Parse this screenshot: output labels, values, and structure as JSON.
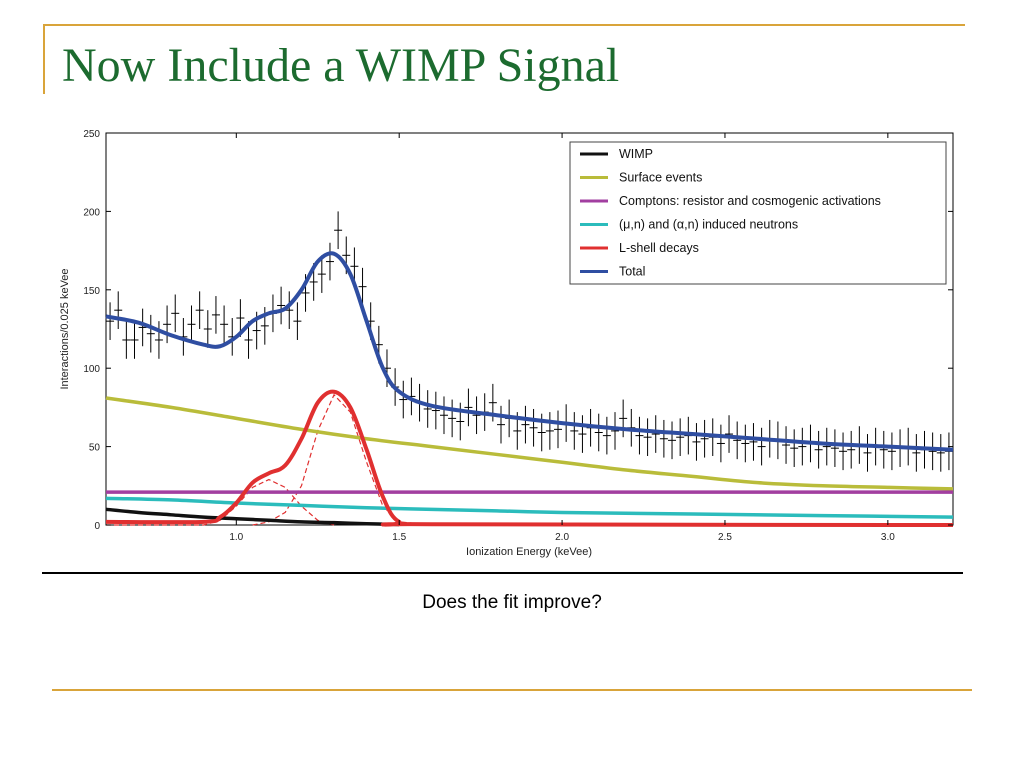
{
  "slide": {
    "title": "Now Include a WIMP Signal",
    "caption": "Does the fit improve?"
  },
  "colors": {
    "title": "#1c6b2f",
    "accent_lines": "#d9a43a"
  },
  "chart_data": {
    "type": "line",
    "title": "",
    "xlabel": "Ionization Energy (keVee)",
    "ylabel": "Interactions/0.025 keVee",
    "xlim": [
      0.6,
      3.2
    ],
    "ylim": [
      0,
      250
    ],
    "xticks": [
      1.0,
      1.5,
      2.0,
      2.5,
      3.0
    ],
    "xtick_labels": [
      "1.0",
      "1.5",
      "2.0",
      "2.5",
      "3.0"
    ],
    "yticks": [
      0,
      50,
      100,
      150,
      200,
      250
    ],
    "ytick_labels": [
      "0",
      "50",
      "100",
      "150",
      "200",
      "250"
    ],
    "grid": false,
    "legend_position": "top-right",
    "series": [
      {
        "name": "WIMP",
        "color": "#111111",
        "x": [
          0.6,
          0.7,
          0.8,
          0.9,
          1.0,
          1.1,
          1.2,
          1.3,
          1.4,
          1.5
        ],
        "y": [
          10,
          8,
          6.5,
          5,
          4,
          3,
          2,
          1.5,
          0.8,
          0.3
        ]
      },
      {
        "name": "Surface events",
        "color": "#b9bc3a",
        "x": [
          0.6,
          0.8,
          1.0,
          1.2,
          1.4,
          1.6,
          1.8,
          2.0,
          2.2,
          2.4,
          2.6,
          2.8,
          3.0,
          3.2
        ],
        "y": [
          81,
          75,
          68,
          61,
          55,
          50,
          45,
          40,
          35,
          31,
          27,
          25,
          24,
          23
        ]
      },
      {
        "name": "Comptons: resistor and cosmogenic activations",
        "color": "#a23fa0",
        "x": [
          0.6,
          3.2
        ],
        "y": [
          21,
          21
        ]
      },
      {
        "name": "(μ,n) and (α,n) induced neutrons",
        "color": "#2bbcbc",
        "x": [
          0.6,
          0.8,
          1.0,
          1.2,
          1.4,
          1.6,
          1.8,
          2.0,
          2.4,
          2.8,
          3.2
        ],
        "y": [
          17,
          16,
          14,
          12.5,
          11,
          10,
          9,
          8,
          7,
          6,
          5
        ]
      },
      {
        "name": "L-shell decays",
        "color": "#e03030",
        "x": [
          0.6,
          0.9,
          0.95,
          1.0,
          1.05,
          1.1,
          1.15,
          1.2,
          1.25,
          1.3,
          1.35,
          1.4,
          1.45,
          1.5,
          1.6,
          3.2
        ],
        "y": [
          2,
          2,
          5,
          14,
          27,
          33,
          38,
          55,
          78,
          85,
          75,
          48,
          18,
          2,
          0.5,
          0
        ]
      },
      {
        "name": "Total",
        "color": "#2f4ea2",
        "x": [
          0.6,
          0.7,
          0.8,
          0.9,
          0.95,
          1.0,
          1.05,
          1.1,
          1.15,
          1.2,
          1.25,
          1.3,
          1.35,
          1.4,
          1.45,
          1.5,
          1.6,
          1.8,
          2.0,
          2.2,
          2.4,
          2.6,
          2.8,
          3.0,
          3.2
        ],
        "y": [
          133,
          129,
          121,
          115,
          114,
          120,
          130,
          135,
          138,
          150,
          168,
          173,
          160,
          130,
          100,
          85,
          76,
          70,
          65,
          61,
          58,
          55,
          52,
          50,
          48
        ]
      }
    ],
    "components_dashed": {
      "color": "#e03030",
      "series": [
        {
          "x": [
            0.6,
            0.9,
            0.95,
            1.0,
            1.05,
            1.1,
            1.15,
            1.2,
            1.25,
            1.3
          ],
          "y": [
            0,
            0,
            3,
            12,
            24,
            29,
            24,
            12,
            3,
            0
          ]
        },
        {
          "x": [
            1.05,
            1.1,
            1.15,
            1.2,
            1.25,
            1.3,
            1.35,
            1.4,
            1.45,
            1.5,
            1.6
          ],
          "y": [
            0,
            2,
            8,
            25,
            60,
            83,
            72,
            40,
            12,
            2,
            0
          ]
        }
      ]
    },
    "data_points": {
      "color": "#000000",
      "x": [
        0.6125,
        0.6375,
        0.6625,
        0.6875,
        0.7125,
        0.7375,
        0.7625,
        0.7875,
        0.8125,
        0.8375,
        0.8625,
        0.8875,
        0.9125,
        0.9375,
        0.9625,
        0.9875,
        1.0125,
        1.0375,
        1.0625,
        1.0875,
        1.1125,
        1.1375,
        1.1625,
        1.1875,
        1.2125,
        1.2375,
        1.2625,
        1.2875,
        1.3125,
        1.3375,
        1.3625,
        1.3875,
        1.4125,
        1.4375,
        1.4625,
        1.4875,
        1.5125,
        1.5375,
        1.5625,
        1.5875,
        1.6125,
        1.6375,
        1.6625,
        1.6875,
        1.7125,
        1.7375,
        1.7625,
        1.7875,
        1.8125,
        1.8375,
        1.8625,
        1.8875,
        1.9125,
        1.9375,
        1.9625,
        1.9875,
        2.0125,
        2.0375,
        2.0625,
        2.0875,
        2.1125,
        2.1375,
        2.1625,
        2.1875,
        2.2125,
        2.2375,
        2.2625,
        2.2875,
        2.3125,
        2.3375,
        2.3625,
        2.3875,
        2.4125,
        2.4375,
        2.4625,
        2.4875,
        2.5125,
        2.5375,
        2.5625,
        2.5875,
        2.6125,
        2.6375,
        2.6625,
        2.6875,
        2.7125,
        2.7375,
        2.7625,
        2.7875,
        2.8125,
        2.8375,
        2.8625,
        2.8875,
        2.9125,
        2.9375,
        2.9625,
        2.9875,
        3.0125,
        3.0375,
        3.0625,
        3.0875,
        3.1125,
        3.1375,
        3.1625,
        3.1875
      ],
      "y": [
        130,
        137,
        118,
        118,
        126,
        122,
        118,
        128,
        135,
        120,
        128,
        137,
        125,
        134,
        128,
        120,
        132,
        118,
        124,
        127,
        135,
        140,
        137,
        130,
        148,
        155,
        160,
        168,
        188,
        172,
        165,
        152,
        130,
        115,
        100,
        88,
        80,
        82,
        78,
        74,
        73,
        70,
        68,
        66,
        75,
        70,
        72,
        78,
        64,
        68,
        60,
        64,
        62,
        59,
        60,
        61,
        65,
        60,
        58,
        62,
        59,
        57,
        60,
        68,
        62,
        57,
        56,
        58,
        55,
        54,
        56,
        57,
        53,
        55,
        56,
        52,
        58,
        54,
        52,
        53,
        50,
        55,
        54,
        51,
        49,
        50,
        52,
        48,
        50,
        49,
        47,
        48,
        51,
        46,
        50,
        48,
        47,
        49,
        50,
        46,
        48,
        47,
        46,
        47
      ],
      "err": 12
    }
  }
}
